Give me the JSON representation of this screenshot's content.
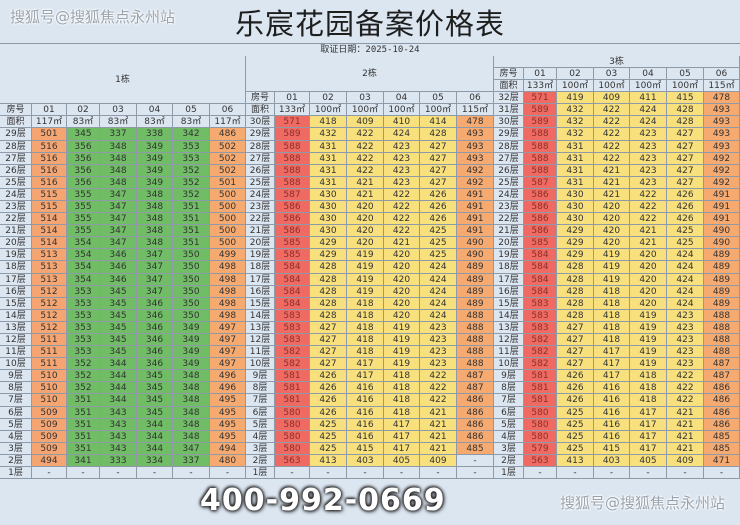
{
  "title": "乐宸花园备案价格表",
  "date_line": "取证日期：2025-10-24",
  "watermark_top": "搜狐号@搜狐焦点永州站",
  "watermark_bottom": "搜狐号@搜狐焦点永州站",
  "phone_overlay": "400-992-0669",
  "labels": {
    "room": "房号",
    "area": "面积"
  },
  "colors": {
    "header_bg": "#dce6f1",
    "orange": "#f5a572",
    "green": "#70bd66",
    "red": "#ee6a62",
    "yellow": "#f8e07c",
    "orange06": "#f6aa70",
    "empty": "#dce6f1"
  },
  "buildings": [
    {
      "name": "1栋",
      "rooms": [
        "01",
        "02",
        "03",
        "04",
        "05",
        "06"
      ],
      "areas": [
        "117㎡",
        "83㎡",
        "83㎡",
        "83㎡",
        "83㎡",
        "117㎡"
      ],
      "col_colors": [
        "orange",
        "green",
        "green",
        "green",
        "green",
        "orange06"
      ],
      "rows": [
        [
          "29层",
          "501",
          "345",
          "337",
          "338",
          "342",
          "486"
        ],
        [
          "28层",
          "516",
          "356",
          "348",
          "349",
          "353",
          "502"
        ],
        [
          "27层",
          "516",
          "356",
          "348",
          "349",
          "353",
          "502"
        ],
        [
          "26层",
          "516",
          "356",
          "348",
          "349",
          "352",
          "502"
        ],
        [
          "25层",
          "516",
          "356",
          "348",
          "349",
          "352",
          "501"
        ],
        [
          "24层",
          "515",
          "355",
          "347",
          "348",
          "352",
          "500"
        ],
        [
          "23层",
          "515",
          "355",
          "347",
          "348",
          "351",
          "500"
        ],
        [
          "22层",
          "514",
          "355",
          "347",
          "348",
          "351",
          "500"
        ],
        [
          "21层",
          "514",
          "355",
          "347",
          "348",
          "351",
          "500"
        ],
        [
          "20层",
          "514",
          "354",
          "347",
          "348",
          "351",
          "500"
        ],
        [
          "19层",
          "513",
          "354",
          "346",
          "347",
          "350",
          "499"
        ],
        [
          "18层",
          "513",
          "354",
          "346",
          "347",
          "350",
          "498"
        ],
        [
          "17层",
          "513",
          "354",
          "346",
          "347",
          "350",
          "498"
        ],
        [
          "16层",
          "512",
          "353",
          "345",
          "347",
          "350",
          "498"
        ],
        [
          "15层",
          "512",
          "353",
          "345",
          "346",
          "350",
          "498"
        ],
        [
          "14层",
          "512",
          "353",
          "345",
          "346",
          "350",
          "498"
        ],
        [
          "13层",
          "512",
          "353",
          "345",
          "346",
          "349",
          "497"
        ],
        [
          "12层",
          "511",
          "353",
          "345",
          "346",
          "349",
          "497"
        ],
        [
          "11层",
          "511",
          "353",
          "345",
          "346",
          "349",
          "497"
        ],
        [
          "10层",
          "511",
          "352",
          "344",
          "346",
          "349",
          "497"
        ],
        [
          "9层",
          "510",
          "352",
          "344",
          "345",
          "348",
          "496"
        ],
        [
          "8层",
          "510",
          "352",
          "344",
          "345",
          "348",
          "496"
        ],
        [
          "7层",
          "510",
          "351",
          "344",
          "345",
          "348",
          "495"
        ],
        [
          "6层",
          "509",
          "351",
          "343",
          "345",
          "348",
          "495"
        ],
        [
          "5层",
          "509",
          "351",
          "343",
          "344",
          "348",
          "495"
        ],
        [
          "4层",
          "509",
          "351",
          "343",
          "344",
          "348",
          "495"
        ],
        [
          "3层",
          "509",
          "351",
          "343",
          "344",
          "347",
          "494"
        ],
        [
          "2层",
          "494",
          "341",
          "333",
          "334",
          "337",
          "480"
        ],
        [
          "1层",
          "-",
          "-",
          "-",
          "-",
          "-",
          "-"
        ]
      ]
    },
    {
      "name": "2栋",
      "rooms": [
        "01",
        "02",
        "03",
        "04",
        "05",
        "06"
      ],
      "areas": [
        "133㎡",
        "100㎡",
        "100㎡",
        "100㎡",
        "100㎡",
        "115㎡"
      ],
      "col_colors": [
        "red",
        "yellow",
        "yellow",
        "yellow",
        "yellow",
        "orange06"
      ],
      "rows": [
        [
          "30层",
          "571",
          "418",
          "409",
          "410",
          "414",
          "478"
        ],
        [
          "29层",
          "589",
          "432",
          "422",
          "424",
          "428",
          "493"
        ],
        [
          "28层",
          "588",
          "431",
          "422",
          "423",
          "427",
          "493"
        ],
        [
          "27层",
          "588",
          "431",
          "422",
          "423",
          "427",
          "493"
        ],
        [
          "26层",
          "588",
          "431",
          "422",
          "423",
          "427",
          "492"
        ],
        [
          "25层",
          "588",
          "431",
          "421",
          "423",
          "427",
          "492"
        ],
        [
          "24层",
          "587",
          "430",
          "421",
          "422",
          "426",
          "491"
        ],
        [
          "23层",
          "586",
          "430",
          "420",
          "422",
          "426",
          "491"
        ],
        [
          "22层",
          "586",
          "430",
          "420",
          "422",
          "426",
          "491"
        ],
        [
          "21层",
          "586",
          "430",
          "420",
          "422",
          "425",
          "491"
        ],
        [
          "20层",
          "585",
          "429",
          "420",
          "421",
          "425",
          "490"
        ],
        [
          "19层",
          "585",
          "429",
          "419",
          "420",
          "425",
          "490"
        ],
        [
          "18层",
          "584",
          "428",
          "419",
          "420",
          "424",
          "489"
        ],
        [
          "17层",
          "584",
          "428",
          "419",
          "420",
          "424",
          "489"
        ],
        [
          "16层",
          "584",
          "428",
          "419",
          "420",
          "424",
          "489"
        ],
        [
          "15层",
          "584",
          "428",
          "418",
          "420",
          "424",
          "489"
        ],
        [
          "14层",
          "583",
          "428",
          "418",
          "420",
          "424",
          "488"
        ],
        [
          "13层",
          "583",
          "427",
          "418",
          "419",
          "423",
          "488"
        ],
        [
          "12层",
          "583",
          "427",
          "418",
          "419",
          "423",
          "488"
        ],
        [
          "11层",
          "582",
          "427",
          "418",
          "419",
          "423",
          "488"
        ],
        [
          "10层",
          "582",
          "427",
          "417",
          "419",
          "423",
          "488"
        ],
        [
          "9层",
          "581",
          "426",
          "417",
          "418",
          "422",
          "487"
        ],
        [
          "8层",
          "581",
          "426",
          "416",
          "418",
          "422",
          "487"
        ],
        [
          "7层",
          "581",
          "426",
          "416",
          "418",
          "422",
          "486"
        ],
        [
          "6层",
          "580",
          "426",
          "416",
          "418",
          "421",
          "486"
        ],
        [
          "5层",
          "580",
          "425",
          "416",
          "417",
          "421",
          "486"
        ],
        [
          "4层",
          "580",
          "425",
          "416",
          "417",
          "421",
          "486"
        ],
        [
          "3层",
          "580",
          "425",
          "415",
          "417",
          "421",
          "485"
        ],
        [
          "2层",
          "563",
          "413",
          "403",
          "405",
          "409",
          "-"
        ],
        [
          "1层",
          "-",
          "-",
          "-",
          "-",
          "-",
          "-"
        ]
      ]
    },
    {
      "name": "3栋",
      "rooms": [
        "01",
        "02",
        "03",
        "04",
        "05",
        "06"
      ],
      "areas": [
        "133㎡",
        "100㎡",
        "100㎡",
        "100㎡",
        "100㎡",
        "115㎡"
      ],
      "col_colors": [
        "red",
        "yellow",
        "yellow",
        "yellow",
        "yellow",
        "orange06"
      ],
      "rows": [
        [
          "32层",
          "571",
          "419",
          "409",
          "411",
          "415",
          "478"
        ],
        [
          "31层",
          "589",
          "432",
          "422",
          "424",
          "428",
          "493"
        ],
        [
          "30层",
          "589",
          "432",
          "422",
          "424",
          "428",
          "493"
        ],
        [
          "29层",
          "588",
          "432",
          "422",
          "423",
          "427",
          "493"
        ],
        [
          "28层",
          "588",
          "431",
          "422",
          "423",
          "427",
          "493"
        ],
        [
          "27层",
          "588",
          "431",
          "422",
          "423",
          "427",
          "492"
        ],
        [
          "26层",
          "588",
          "431",
          "421",
          "423",
          "427",
          "492"
        ],
        [
          "25层",
          "587",
          "431",
          "421",
          "423",
          "427",
          "492"
        ],
        [
          "24层",
          "586",
          "430",
          "421",
          "422",
          "426",
          "491"
        ],
        [
          "23层",
          "586",
          "430",
          "420",
          "422",
          "426",
          "491"
        ],
        [
          "22层",
          "586",
          "430",
          "420",
          "422",
          "426",
          "491"
        ],
        [
          "21层",
          "586",
          "429",
          "420",
          "421",
          "425",
          "490"
        ],
        [
          "20层",
          "585",
          "429",
          "420",
          "421",
          "425",
          "490"
        ],
        [
          "19层",
          "584",
          "429",
          "419",
          "420",
          "424",
          "489"
        ],
        [
          "18层",
          "584",
          "428",
          "419",
          "420",
          "424",
          "489"
        ],
        [
          "17层",
          "584",
          "428",
          "419",
          "420",
          "424",
          "489"
        ],
        [
          "16层",
          "584",
          "428",
          "418",
          "420",
          "424",
          "489"
        ],
        [
          "15层",
          "583",
          "428",
          "418",
          "420",
          "424",
          "489"
        ],
        [
          "14层",
          "583",
          "428",
          "418",
          "419",
          "423",
          "488"
        ],
        [
          "13层",
          "583",
          "427",
          "418",
          "419",
          "423",
          "488"
        ],
        [
          "12层",
          "582",
          "427",
          "418",
          "419",
          "423",
          "488"
        ],
        [
          "11层",
          "582",
          "427",
          "417",
          "419",
          "423",
          "488"
        ],
        [
          "10层",
          "582",
          "427",
          "417",
          "419",
          "423",
          "487"
        ],
        [
          "9层",
          "581",
          "426",
          "417",
          "418",
          "422",
          "487"
        ],
        [
          "8层",
          "581",
          "426",
          "416",
          "418",
          "422",
          "486"
        ],
        [
          "7层",
          "581",
          "426",
          "416",
          "418",
          "422",
          "486"
        ],
        [
          "6层",
          "580",
          "425",
          "416",
          "417",
          "421",
          "486"
        ],
        [
          "5层",
          "580",
          "425",
          "416",
          "417",
          "421",
          "486"
        ],
        [
          "4层",
          "580",
          "425",
          "416",
          "417",
          "421",
          "485"
        ],
        [
          "3层",
          "579",
          "425",
          "415",
          "417",
          "421",
          "485"
        ],
        [
          "2层",
          "563",
          "413",
          "403",
          "405",
          "409",
          "471"
        ],
        [
          "1层",
          "-",
          "-",
          "-",
          "-",
          "-",
          "-"
        ]
      ]
    }
  ]
}
